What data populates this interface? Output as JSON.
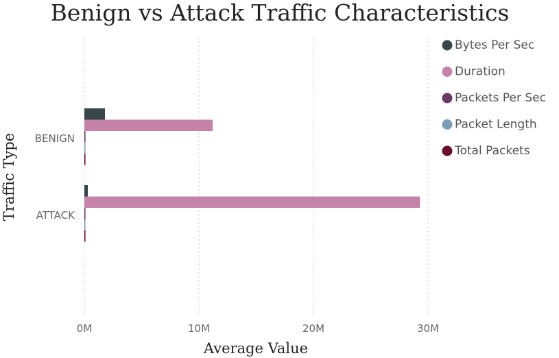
{
  "chart_data": {
    "type": "bar",
    "orientation": "horizontal",
    "title": "Benign vs Attack Traffic Characteristics",
    "xlabel": "Average Value",
    "ylabel": "Traffic Type",
    "categories": [
      "BENIGN",
      "ATTACK"
    ],
    "xlim": [
      0,
      30000000
    ],
    "x_ticks": [
      {
        "value": 0,
        "label": "0M"
      },
      {
        "value": 10000000,
        "label": "10M"
      },
      {
        "value": 20000000,
        "label": "20M"
      },
      {
        "value": 30000000,
        "label": "30M"
      }
    ],
    "grid": "vertical-dotted",
    "legend_position": "right",
    "series": [
      {
        "name": "Bytes Per Sec",
        "color": "#374649",
        "values": [
          1800000,
          300000
        ]
      },
      {
        "name": "Duration",
        "color": "#C583AA",
        "values": [
          11200000,
          29300000
        ]
      },
      {
        "name": "Packets Per Sec",
        "color": "#6A3A6B",
        "values": [
          60000,
          40000
        ]
      },
      {
        "name": "Packet Length",
        "color": "#7B9DB8",
        "values": [
          100,
          100
        ]
      },
      {
        "name": "Total Packets",
        "color": "#6A0D2E",
        "values": [
          50,
          50
        ]
      }
    ]
  }
}
